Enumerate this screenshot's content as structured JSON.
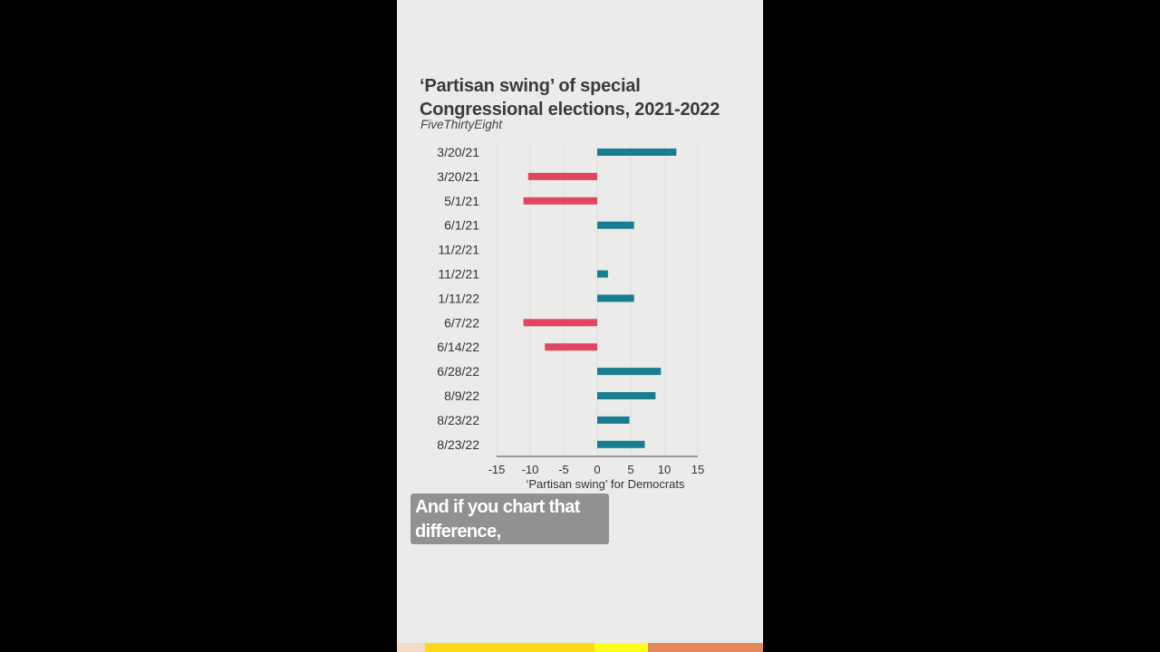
{
  "chart_title": "‘Partisan swing’ of special\nCongressional elections, 2021-2022",
  "source": "FiveThirtyEight",
  "caption": "And if you chart that\ndifference,",
  "colors": {
    "positive": "#177e8f",
    "negative": "#e0465f",
    "grid": "#dcdcdc",
    "axis": "#444444"
  },
  "footer_colors": [
    "#f3d9c7",
    "#ffd81a",
    "#ffff1a",
    "#e3885a"
  ],
  "chart_data": {
    "type": "bar",
    "orientation": "horizontal",
    "title": "‘Partisan swing’ of special Congressional elections, 2021-2022",
    "xlabel": "‘Partisan swing’ for Democrats",
    "xlim": [
      -15,
      15
    ],
    "xticks": [
      -15,
      -10,
      -5,
      0,
      5,
      10,
      15
    ],
    "grid": true,
    "categories": [
      "3/20/21",
      "3/20/21",
      "5/1/21",
      "6/1/21",
      "11/2/21",
      "11/2/21",
      "1/11/22",
      "6/7/22",
      "6/14/22",
      "6/28/22",
      "8/9/22",
      "8/23/22",
      "8/23/22"
    ],
    "values": [
      11.8,
      -10.3,
      -11.0,
      5.5,
      0,
      1.6,
      5.5,
      -11.0,
      -7.8,
      9.5,
      8.7,
      4.8,
      7.1
    ]
  }
}
